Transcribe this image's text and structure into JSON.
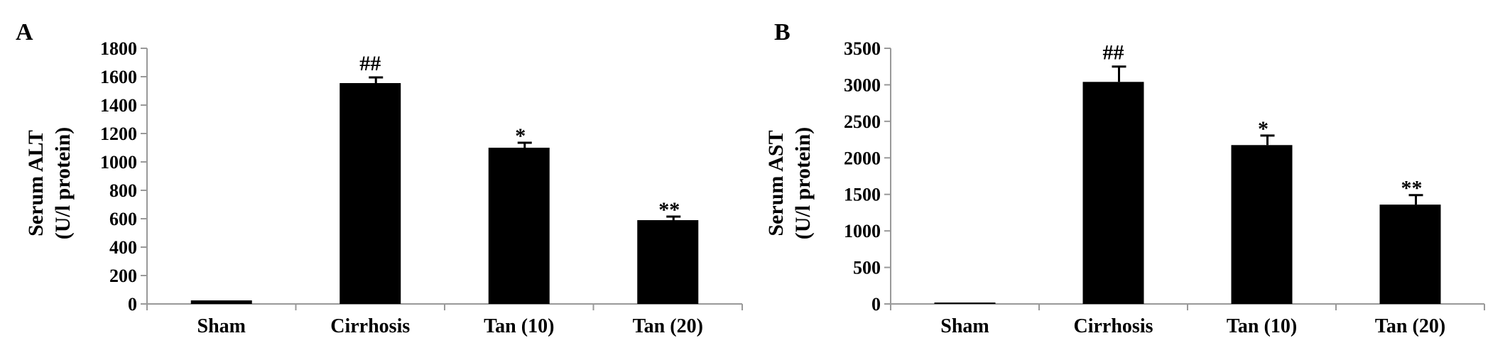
{
  "chart_data": [
    {
      "type": "bar",
      "panel_label": "A",
      "ylabel_lines": [
        "Serum ALT",
        "(U/l protein)"
      ],
      "categories": [
        "Sham",
        "Cirrhosis",
        "Tan (10)",
        "Tan (20)"
      ],
      "values": [
        25,
        1555,
        1100,
        590
      ],
      "errors": [
        3,
        40,
        35,
        25
      ],
      "annotations": [
        "",
        "##",
        "*",
        "**"
      ],
      "ylim": [
        0,
        1800
      ],
      "yticks": [
        0,
        200,
        400,
        600,
        800,
        1000,
        1200,
        1400,
        1600,
        1800
      ],
      "bar_color": "#000000",
      "grid": false
    },
    {
      "type": "bar",
      "panel_label": "B",
      "ylabel_lines": [
        "Serum AST",
        "(U/l protein)"
      ],
      "categories": [
        "Sham",
        "Cirrhosis",
        "Tan (10)",
        "Tan (20)"
      ],
      "values": [
        15,
        3040,
        2175,
        1360
      ],
      "errors": [
        5,
        210,
        130,
        130
      ],
      "annotations": [
        "",
        "##",
        "*",
        "**"
      ],
      "ylim": [
        0,
        3500
      ],
      "yticks": [
        0,
        500,
        1000,
        1500,
        2000,
        2500,
        3000,
        3500
      ],
      "bar_color": "#000000",
      "grid": false
    }
  ]
}
